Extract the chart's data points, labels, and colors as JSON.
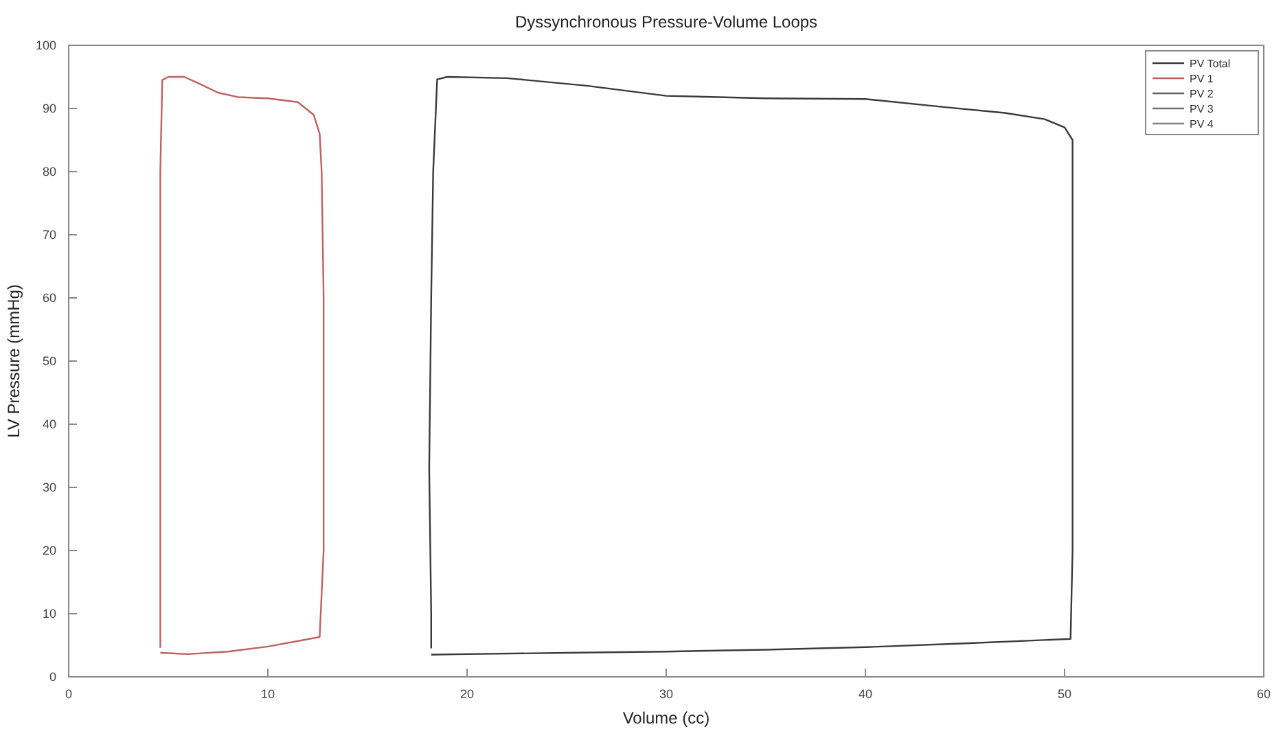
{
  "chart_data": {
    "type": "line",
    "title": "Dyssynchronous Pressure-Volume Loops",
    "xlabel": "Volume (cc)",
    "ylabel": "LV Pressure (mmHg)",
    "xlim": [
      0,
      60
    ],
    "xticks": [
      0,
      10,
      20,
      30,
      40,
      50,
      60
    ],
    "ylim": [
      0,
      100
    ],
    "yticks": [
      0,
      10,
      20,
      30,
      40,
      50,
      60,
      70,
      80,
      90,
      100
    ],
    "grid": false,
    "legend": "top right",
    "line_style": "solid",
    "marker": "none",
    "series": [
      {
        "name": "PV Total",
        "color": "#3a3a3a",
        "x": [
          18.2,
          20,
          25,
          30,
          35,
          40,
          45,
          50.3,
          50.4,
          50.4,
          50.4,
          50,
          49,
          47,
          44,
          40,
          35,
          30,
          26,
          22,
          19,
          18.5,
          18.3,
          18.2,
          18.1,
          18.2,
          18.2
        ],
        "values": [
          3.5,
          3.6,
          3.8,
          4.0,
          4.3,
          4.7,
          5.3,
          6,
          20,
          60,
          85,
          87,
          88.3,
          89.3,
          90.2,
          91.5,
          91.6,
          92,
          93.6,
          94.8,
          95,
          94.6,
          80,
          60,
          33,
          10,
          4.5
        ]
      },
      {
        "name": "PV 1",
        "color": "#c06060",
        "x": [
          4.6,
          6,
          8,
          10,
          12.6,
          12.8,
          12.8,
          12.7,
          12.6,
          12.3,
          11.5,
          10,
          8.5,
          7.5,
          6.5,
          5.8,
          5,
          4.7,
          4.6,
          4.6,
          4.6,
          4.6
        ],
        "values": [
          3.8,
          3.6,
          4.0,
          4.8,
          6.3,
          20,
          60,
          80,
          86,
          89,
          91,
          91.6,
          91.8,
          92.5,
          94,
          95,
          95,
          94.5,
          80,
          40,
          10,
          4.6
        ]
      },
      {
        "name": "PV 2",
        "color": "#606060"
      },
      {
        "name": "PV 3",
        "color": "#707070"
      },
      {
        "name": "PV 4",
        "color": "#808080"
      }
    ]
  }
}
